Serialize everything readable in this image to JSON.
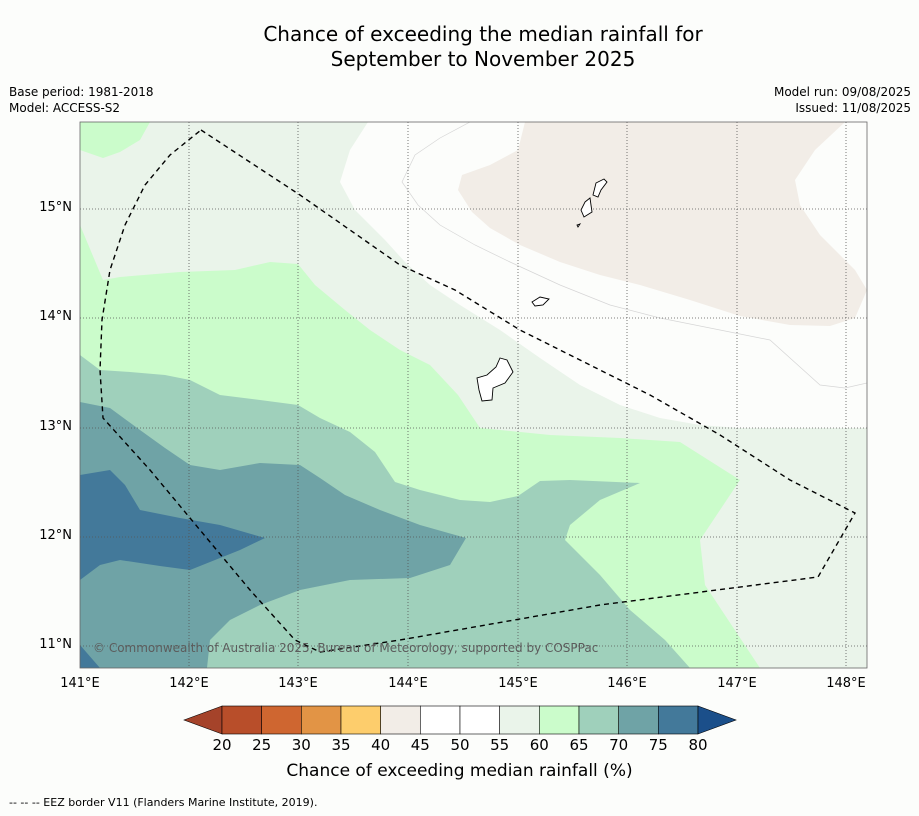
{
  "title_line1": "Chance of exceeding the median rainfall for",
  "title_line2": "September to November 2025",
  "base_period": "Base period: 1981-2018",
  "model": "Model: ACCESS-S2",
  "model_run": "Model run: 09/08/2025",
  "issued": "Issued: 11/08/2025",
  "copyright": "© Commonwealth of Australia 2025, Bureau of Meteorology, supported by COSPPac",
  "legend_text": "--  --  -- EEZ border V11 (Flanders Marine Institute, 2019).",
  "map": {
    "lon_range": [
      141,
      148.2
    ],
    "lat_range": [
      10.8,
      15.8
    ],
    "x_ticks": [
      "141°E",
      "142°E",
      "143°E",
      "144°E",
      "145°E",
      "146°E",
      "147°E",
      "148°E"
    ],
    "y_ticks": [
      "15°N",
      "14°N",
      "13°N",
      "12°N",
      "11°N"
    ],
    "gridlines": true
  },
  "colorbar": {
    "title": "Chance of exceeding median rainfall (%)",
    "ticks": [
      "20",
      "25",
      "30",
      "35",
      "40",
      "45",
      "50",
      "55",
      "60",
      "65",
      "70",
      "75",
      "80"
    ],
    "colors": {
      "below_20": "#a5432a",
      "20_25": "#b84e2a",
      "25_30": "#cf6630",
      "30_35": "#e29445",
      "35_40": "#fdcd6c",
      "40_45": "#f2ede7",
      "45_50": "#ffffff",
      "50_55": "#ffffff",
      "55_60": "#eaf4ea",
      "60_65": "#cbfccb",
      "65_70": "#9fd0bb",
      "70_75": "#6fa3a6",
      "75_80": "#43799a",
      "above_80": "#1b4f8a"
    }
  }
}
